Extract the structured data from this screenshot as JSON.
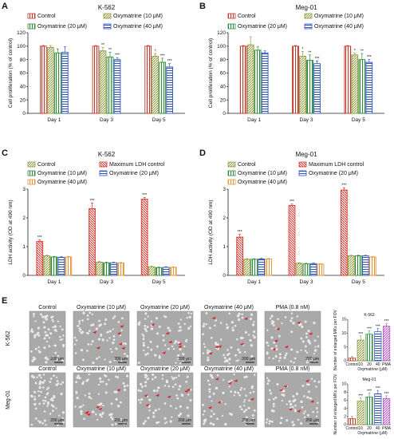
{
  "panel_labels": {
    "a": "A",
    "b": "B",
    "c": "C",
    "d": "D",
    "e": "E"
  },
  "colors": {
    "control": "#c0392b",
    "oxy10": "#8f9a3e",
    "oxy20": "#2e8b3a",
    "oxy40": "#2f55b8",
    "max_ldh": "#d9342b",
    "oxy40_ldh": "#e8943a",
    "oxy20_ldh": "#2f55b8",
    "purple": "#b34fbf",
    "arrow": "#e0202a"
  },
  "panelE": {
    "row_labels": [
      "K-562",
      "Meg-01"
    ],
    "col_titles": [
      "Control",
      "Oxymatrine (10 μM)",
      "Oxymatrine (20 μM)",
      "Oxymatrine (40 μM)",
      "PMA (0.8 nM)"
    ],
    "scale_label": "200 μm"
  },
  "chart_data": [
    {
      "id": "A",
      "type": "bar",
      "title": "K-562",
      "ylabel": "Cell proliferation (% of control)",
      "ylim": [
        0,
        120
      ],
      "yticks": [
        0,
        20,
        40,
        60,
        80,
        100,
        120
      ],
      "categories": [
        "Day 1",
        "Day 3",
        "Day 5"
      ],
      "legend": [
        "Control",
        "Oxymatrine (10 μM)",
        "Oxymatrine (20 μM)",
        "Oxymatrine (40 μM)"
      ],
      "series": [
        {
          "name": "Control",
          "values": [
            100,
            100,
            100
          ],
          "errors": [
            1,
            1,
            1
          ],
          "stars": [
            "",
            "",
            ""
          ]
        },
        {
          "name": "Oxymatrine (10 μM)",
          "values": [
            98,
            93,
            85
          ],
          "errors": [
            3,
            5,
            4
          ],
          "stars": [
            "",
            "**",
            "*"
          ]
        },
        {
          "name": "Oxymatrine (20 μM)",
          "values": [
            90,
            84,
            76
          ],
          "errors": [
            6,
            7,
            6
          ],
          "stars": [
            "",
            "**",
            "***"
          ]
        },
        {
          "name": "Oxymatrine (40 μM)",
          "values": [
            91,
            80,
            69
          ],
          "errors": [
            8,
            3,
            5
          ],
          "stars": [
            "",
            "***",
            "***"
          ]
        }
      ]
    },
    {
      "id": "B",
      "type": "bar",
      "title": "Meg-01",
      "ylabel": "Cell proliferation (% of control)",
      "ylim": [
        0,
        120
      ],
      "yticks": [
        0,
        20,
        40,
        60,
        80,
        100,
        120
      ],
      "categories": [
        "Day 1",
        "Day 3",
        "Day 5"
      ],
      "legend": [
        "Control",
        "Oxymatrine (10 μM)",
        "Oxymatrine (20 μM)",
        "Oxymatrine (40 μM)"
      ],
      "series": [
        {
          "name": "Control",
          "values": [
            100,
            100,
            100
          ],
          "errors": [
            1,
            1,
            1
          ],
          "stars": [
            "",
            "",
            ""
          ]
        },
        {
          "name": "Oxymatrine (10 μM)",
          "values": [
            102,
            85,
            87
          ],
          "errors": [
            12,
            7,
            3
          ],
          "stars": [
            "",
            "*",
            "*"
          ]
        },
        {
          "name": "Oxymatrine (20 μM)",
          "values": [
            94,
            79,
            80
          ],
          "errors": [
            5,
            8,
            9
          ],
          "stars": [
            "",
            "**",
            "**"
          ]
        },
        {
          "name": "Oxymatrine (40 μM)",
          "values": [
            90,
            74,
            76
          ],
          "errors": [
            3,
            4,
            4
          ],
          "stars": [
            "",
            "***",
            "***"
          ]
        }
      ]
    },
    {
      "id": "C",
      "type": "bar",
      "title": "K-562",
      "ylabel": "LDH activity (OD at 490 nm)",
      "ylim": [
        0,
        3
      ],
      "yticks": [
        0,
        1,
        2,
        3
      ],
      "categories": [
        "Day 1",
        "Day 3",
        "Day 5"
      ],
      "legend": [
        "Control",
        "Maximum LDH control",
        "Oxymatrine (10 μM)",
        "Oxymatrine (20 μM)",
        "Oxymatrine (40 μM)"
      ],
      "series": [
        {
          "name": "Maximum LDH control",
          "values": [
            1.18,
            2.32,
            2.65
          ],
          "errors": [
            0.06,
            0.2,
            0.06
          ],
          "stars": [
            "***",
            "***",
            "***"
          ]
        },
        {
          "name": "Control",
          "values": [
            0.68,
            0.46,
            0.3
          ],
          "errors": [
            0.02,
            0.02,
            0.02
          ],
          "stars": [
            "",
            "",
            ""
          ]
        },
        {
          "name": "Oxymatrine (10 μM)",
          "values": [
            0.64,
            0.44,
            0.27
          ],
          "errors": [
            0.02,
            0.02,
            0.02
          ],
          "stars": [
            "",
            "",
            ""
          ]
        },
        {
          "name": "Oxymatrine (20 μM)",
          "values": [
            0.63,
            0.44,
            0.28
          ],
          "errors": [
            0.02,
            0.02,
            0.02
          ],
          "stars": [
            "",
            "",
            ""
          ]
        },
        {
          "name": "Oxymatrine (40 μM)",
          "values": [
            0.64,
            0.43,
            0.28
          ],
          "errors": [
            0.02,
            0.02,
            0.02
          ],
          "stars": [
            "",
            "",
            ""
          ]
        }
      ]
    },
    {
      "id": "D",
      "type": "bar",
      "title": "Meg-01",
      "ylabel": "LDH activity (OD at 490 nm)",
      "ylim": [
        0,
        3
      ],
      "yticks": [
        0,
        1,
        2,
        3
      ],
      "categories": [
        "Day 1",
        "Day 3",
        "Day 5"
      ],
      "legend": [
        "Control",
        "Maximum LDH control",
        "Oxymatrine (10 μM)",
        "Oxymatrine (20 μM)",
        "Oxymatrine (40 μM)"
      ],
      "series": [
        {
          "name": "Maximum LDH control",
          "values": [
            1.33,
            2.43,
            2.97
          ],
          "errors": [
            0.1,
            0.05,
            0.08
          ],
          "stars": [
            "***",
            "***",
            "***"
          ]
        },
        {
          "name": "Control",
          "values": [
            0.56,
            0.42,
            0.68
          ],
          "errors": [
            0.02,
            0.02,
            0.02
          ],
          "stars": [
            "",
            "",
            ""
          ]
        },
        {
          "name": "Oxymatrine (10 μM)",
          "values": [
            0.56,
            0.4,
            0.68
          ],
          "errors": [
            0.02,
            0.02,
            0.02
          ],
          "stars": [
            "",
            "",
            ""
          ]
        },
        {
          "name": "Oxymatrine (20 μM)",
          "values": [
            0.57,
            0.41,
            0.68
          ],
          "errors": [
            0.02,
            0.02,
            0.02
          ],
          "stars": [
            "",
            "",
            ""
          ]
        },
        {
          "name": "Oxymatrine (40 μM)",
          "values": [
            0.57,
            0.39,
            0.64
          ],
          "errors": [
            0.02,
            0.02,
            0.02
          ],
          "stars": [
            "",
            "",
            ""
          ]
        }
      ]
    },
    {
      "id": "E1",
      "type": "bar",
      "title": "K-562",
      "ylabel": "Number of enlarged MKs per FOV",
      "xlabel": "Oxymatrine (μM)",
      "ylim": [
        0,
        15
      ],
      "yticks": [
        0,
        5,
        10,
        15
      ],
      "categories": [
        "Control",
        "10",
        "20",
        "40",
        "PMA"
      ],
      "values": [
        1,
        7.5,
        9.6,
        10.5,
        12.5
      ],
      "errors": [
        0.5,
        1.5,
        1.2,
        1.2,
        1.0
      ],
      "stars": [
        "",
        "***",
        "***",
        "***",
        "***"
      ]
    },
    {
      "id": "E2",
      "type": "bar",
      "title": "Meg-01",
      "ylabel": "Number of enlarged MKs per FOV",
      "xlabel": "Oxymatrine (μM)",
      "ylim": [
        0,
        10
      ],
      "yticks": [
        0,
        2,
        4,
        6,
        8,
        10
      ],
      "categories": [
        "Control",
        "10",
        "20",
        "40",
        "PMA"
      ],
      "values": [
        1.5,
        5.8,
        6.8,
        7.6,
        6.4
      ],
      "errors": [
        0.5,
        0.8,
        0.9,
        0.8,
        0.7
      ],
      "stars": [
        "",
        "***",
        "***",
        "***",
        "***"
      ]
    }
  ]
}
